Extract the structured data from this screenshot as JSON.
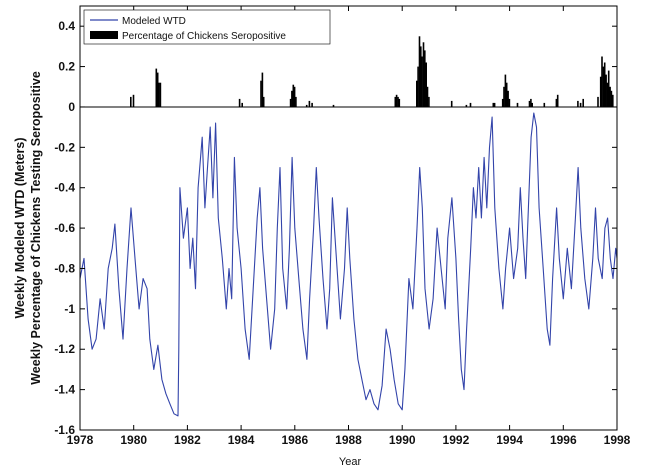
{
  "chart_data": {
    "type": "line",
    "xlabel": "Year",
    "ylabel_line1": "Weekly Modeled WTD (Meters)",
    "ylabel_line2": "Weekly Percentage of Chickens Testing Seropositive",
    "xlim": [
      1978,
      1998
    ],
    "xticks": [
      1978,
      1980,
      1982,
      1984,
      1986,
      1988,
      1990,
      1992,
      1994,
      1996,
      1998
    ],
    "ylim": [
      -1.6,
      0.5
    ],
    "yticks": [
      -1.6,
      -1.4,
      -1.2,
      -1,
      -0.8,
      -0.6,
      -0.4,
      -0.2,
      0,
      0.2,
      0.4
    ],
    "ytick_labels": [
      "-1.6",
      "-1.4",
      "-1.2",
      "-1",
      "-0.8",
      "-0.6",
      "-0.4",
      "-0.2",
      "0",
      "0.2",
      "0.4"
    ],
    "xtick_labels": [
      "1978",
      "1980",
      "1982",
      "1984",
      "1986",
      "1988",
      "1990",
      "1992",
      "1994",
      "1996",
      "1998"
    ],
    "legend_position": "top-left",
    "grid": false,
    "colors": {
      "wtd": "#3344aa",
      "seropositive": "#000000"
    },
    "series": [
      {
        "name": "Modeled WTD",
        "style": "line",
        "points": [
          [
            1978.0,
            -0.85
          ],
          [
            1978.15,
            -0.75
          ],
          [
            1978.3,
            -1.05
          ],
          [
            1978.45,
            -1.2
          ],
          [
            1978.6,
            -1.15
          ],
          [
            1978.75,
            -0.95
          ],
          [
            1978.9,
            -1.1
          ],
          [
            1979.05,
            -0.8
          ],
          [
            1979.2,
            -0.7
          ],
          [
            1979.3,
            -0.58
          ],
          [
            1979.45,
            -0.9
          ],
          [
            1979.6,
            -1.15
          ],
          [
            1979.75,
            -0.8
          ],
          [
            1979.9,
            -0.5
          ],
          [
            1980.05,
            -0.75
          ],
          [
            1980.2,
            -1.0
          ],
          [
            1980.35,
            -0.85
          ],
          [
            1980.5,
            -0.9
          ],
          [
            1980.6,
            -1.15
          ],
          [
            1980.75,
            -1.3
          ],
          [
            1980.9,
            -1.18
          ],
          [
            1981.05,
            -1.35
          ],
          [
            1981.2,
            -1.42
          ],
          [
            1981.35,
            -1.47
          ],
          [
            1981.5,
            -1.52
          ],
          [
            1981.65,
            -1.53
          ],
          [
            1981.68,
            -1.2
          ],
          [
            1981.72,
            -0.4
          ],
          [
            1981.85,
            -0.65
          ],
          [
            1982.0,
            -0.5
          ],
          [
            1982.1,
            -0.8
          ],
          [
            1982.2,
            -0.65
          ],
          [
            1982.3,
            -0.9
          ],
          [
            1982.4,
            -0.4
          ],
          [
            1982.55,
            -0.15
          ],
          [
            1982.65,
            -0.5
          ],
          [
            1982.75,
            -0.3
          ],
          [
            1982.85,
            -0.1
          ],
          [
            1982.95,
            -0.45
          ],
          [
            1983.05,
            -0.08
          ],
          [
            1983.15,
            -0.55
          ],
          [
            1983.3,
            -0.75
          ],
          [
            1983.45,
            -1.0
          ],
          [
            1983.55,
            -0.8
          ],
          [
            1983.65,
            -0.95
          ],
          [
            1983.75,
            -0.25
          ],
          [
            1983.85,
            -0.6
          ],
          [
            1984.0,
            -0.8
          ],
          [
            1984.15,
            -1.1
          ],
          [
            1984.3,
            -1.25
          ],
          [
            1984.45,
            -0.9
          ],
          [
            1984.6,
            -0.55
          ],
          [
            1984.7,
            -0.4
          ],
          [
            1984.8,
            -0.7
          ],
          [
            1984.95,
            -0.95
          ],
          [
            1985.1,
            -1.2
          ],
          [
            1985.25,
            -1.0
          ],
          [
            1985.35,
            -0.6
          ],
          [
            1985.45,
            -0.3
          ],
          [
            1985.55,
            -0.8
          ],
          [
            1985.7,
            -1.0
          ],
          [
            1985.8,
            -0.7
          ],
          [
            1985.9,
            -0.25
          ],
          [
            1986.0,
            -0.6
          ],
          [
            1986.15,
            -0.85
          ],
          [
            1986.3,
            -1.1
          ],
          [
            1986.45,
            -1.25
          ],
          [
            1986.55,
            -0.95
          ],
          [
            1986.7,
            -0.6
          ],
          [
            1986.8,
            -0.3
          ],
          [
            1986.9,
            -0.55
          ],
          [
            1987.05,
            -0.85
          ],
          [
            1987.2,
            -1.1
          ],
          [
            1987.3,
            -0.9
          ],
          [
            1987.4,
            -0.45
          ],
          [
            1987.55,
            -0.75
          ],
          [
            1987.7,
            -1.05
          ],
          [
            1987.85,
            -0.8
          ],
          [
            1987.95,
            -0.5
          ],
          [
            1988.05,
            -0.75
          ],
          [
            1988.2,
            -1.05
          ],
          [
            1988.35,
            -1.25
          ],
          [
            1988.5,
            -1.35
          ],
          [
            1988.65,
            -1.45
          ],
          [
            1988.8,
            -1.4
          ],
          [
            1988.95,
            -1.47
          ],
          [
            1989.1,
            -1.5
          ],
          [
            1989.25,
            -1.38
          ],
          [
            1989.4,
            -1.1
          ],
          [
            1989.55,
            -1.2
          ],
          [
            1989.7,
            -1.35
          ],
          [
            1989.85,
            -1.47
          ],
          [
            1990.0,
            -1.5
          ],
          [
            1990.1,
            -1.3
          ],
          [
            1990.25,
            -0.85
          ],
          [
            1990.4,
            -1.0
          ],
          [
            1990.55,
            -0.6
          ],
          [
            1990.65,
            -0.3
          ],
          [
            1990.75,
            -0.5
          ],
          [
            1990.85,
            -0.9
          ],
          [
            1991.0,
            -1.1
          ],
          [
            1991.15,
            -0.95
          ],
          [
            1991.3,
            -0.6
          ],
          [
            1991.45,
            -0.8
          ],
          [
            1991.6,
            -1.0
          ],
          [
            1991.7,
            -0.65
          ],
          [
            1991.85,
            -0.45
          ],
          [
            1992.0,
            -0.75
          ],
          [
            1992.1,
            -1.05
          ],
          [
            1992.2,
            -1.3
          ],
          [
            1992.3,
            -1.4
          ],
          [
            1992.4,
            -1.1
          ],
          [
            1992.55,
            -0.7
          ],
          [
            1992.65,
            -0.4
          ],
          [
            1992.75,
            -0.55
          ],
          [
            1992.85,
            -0.3
          ],
          [
            1992.95,
            -0.55
          ],
          [
            1993.05,
            -0.25
          ],
          [
            1993.15,
            -0.5
          ],
          [
            1993.25,
            -0.2
          ],
          [
            1993.35,
            -0.05
          ],
          [
            1993.45,
            -0.5
          ],
          [
            1993.6,
            -0.8
          ],
          [
            1993.75,
            -1.0
          ],
          [
            1993.85,
            -0.8
          ],
          [
            1994.0,
            -0.6
          ],
          [
            1994.15,
            -0.85
          ],
          [
            1994.3,
            -0.7
          ],
          [
            1994.4,
            -0.4
          ],
          [
            1994.5,
            -0.65
          ],
          [
            1994.6,
            -0.85
          ],
          [
            1994.7,
            -0.5
          ],
          [
            1994.8,
            -0.15
          ],
          [
            1994.9,
            -0.03
          ],
          [
            1995.0,
            -0.1
          ],
          [
            1995.1,
            -0.5
          ],
          [
            1995.25,
            -0.8
          ],
          [
            1995.4,
            -1.1
          ],
          [
            1995.5,
            -1.18
          ],
          [
            1995.6,
            -0.85
          ],
          [
            1995.75,
            -0.5
          ],
          [
            1995.85,
            -0.75
          ],
          [
            1996.0,
            -0.95
          ],
          [
            1996.15,
            -0.7
          ],
          [
            1996.3,
            -0.9
          ],
          [
            1996.45,
            -0.55
          ],
          [
            1996.55,
            -0.3
          ],
          [
            1996.65,
            -0.6
          ],
          [
            1996.8,
            -0.85
          ],
          [
            1996.95,
            -1.0
          ],
          [
            1997.1,
            -0.75
          ],
          [
            1997.2,
            -0.5
          ],
          [
            1997.3,
            -0.75
          ],
          [
            1997.45,
            -0.85
          ],
          [
            1997.55,
            -0.6
          ],
          [
            1997.65,
            -0.55
          ],
          [
            1997.75,
            -0.75
          ],
          [
            1997.85,
            -0.85
          ],
          [
            1997.95,
            -0.7
          ],
          [
            1998.0,
            -0.75
          ]
        ]
      },
      {
        "name": "Percentage of Chickens Seropositive",
        "style": "bars",
        "points": [
          [
            1979.9,
            0.05
          ],
          [
            1980.0,
            0.06
          ],
          [
            1980.85,
            0.19
          ],
          [
            1980.9,
            0.17
          ],
          [
            1980.95,
            0.12
          ],
          [
            1981.0,
            0.12
          ],
          [
            1983.95,
            0.04
          ],
          [
            1984.05,
            0.02
          ],
          [
            1984.75,
            0.13
          ],
          [
            1984.8,
            0.17
          ],
          [
            1984.85,
            0.05
          ],
          [
            1985.85,
            0.04
          ],
          [
            1985.9,
            0.08
          ],
          [
            1985.95,
            0.11
          ],
          [
            1986.0,
            0.1
          ],
          [
            1986.05,
            0.05
          ],
          [
            1986.45,
            0.01
          ],
          [
            1986.55,
            0.03
          ],
          [
            1986.65,
            0.02
          ],
          [
            1987.45,
            0.01
          ],
          [
            1989.75,
            0.05
          ],
          [
            1989.8,
            0.06
          ],
          [
            1989.85,
            0.05
          ],
          [
            1989.9,
            0.04
          ],
          [
            1990.55,
            0.13
          ],
          [
            1990.6,
            0.2
          ],
          [
            1990.65,
            0.35
          ],
          [
            1990.7,
            0.3
          ],
          [
            1990.75,
            0.25
          ],
          [
            1990.8,
            0.32
          ],
          [
            1990.85,
            0.28
          ],
          [
            1990.9,
            0.22
          ],
          [
            1990.95,
            0.1
          ],
          [
            1991.0,
            0.05
          ],
          [
            1991.85,
            0.03
          ],
          [
            1992.4,
            0.01
          ],
          [
            1992.55,
            0.02
          ],
          [
            1993.4,
            0.02
          ],
          [
            1993.45,
            0.02
          ],
          [
            1993.75,
            0.04
          ],
          [
            1993.8,
            0.1
          ],
          [
            1993.85,
            0.16
          ],
          [
            1993.9,
            0.12
          ],
          [
            1993.95,
            0.08
          ],
          [
            1994.0,
            0.04
          ],
          [
            1994.3,
            0.02
          ],
          [
            1994.75,
            0.03
          ],
          [
            1994.8,
            0.04
          ],
          [
            1994.85,
            0.02
          ],
          [
            1995.3,
            0.02
          ],
          [
            1995.75,
            0.04
          ],
          [
            1995.8,
            0.06
          ],
          [
            1996.55,
            0.03
          ],
          [
            1996.65,
            0.02
          ],
          [
            1996.75,
            0.04
          ],
          [
            1997.3,
            0.05
          ],
          [
            1997.4,
            0.15
          ],
          [
            1997.45,
            0.25
          ],
          [
            1997.5,
            0.2
          ],
          [
            1997.55,
            0.22
          ],
          [
            1997.6,
            0.16
          ],
          [
            1997.65,
            0.12
          ],
          [
            1997.7,
            0.18
          ],
          [
            1997.75,
            0.1
          ],
          [
            1997.8,
            0.08
          ],
          [
            1997.85,
            0.06
          ]
        ]
      }
    ]
  }
}
